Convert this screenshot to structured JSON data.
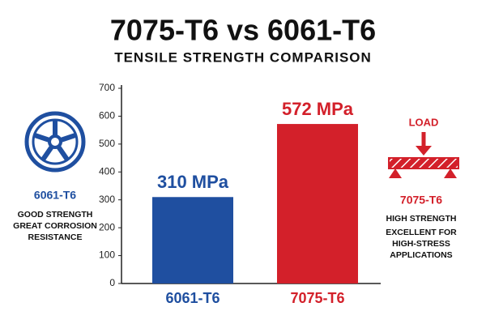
{
  "chart_data": {
    "type": "bar",
    "title": "7075-T6 vs 6061-T6",
    "subtitle": "TENSILE STRENGTH COMPARISON",
    "categories": [
      "6061-T6",
      "7075-T6"
    ],
    "values": [
      310,
      572
    ],
    "value_labels": [
      "310 MPa",
      "572 MPa"
    ],
    "colors": [
      "#1f4fa0",
      "#d3202a"
    ],
    "ylim": [
      0,
      700
    ],
    "yticks": [
      0,
      100,
      200,
      300,
      400,
      500,
      600,
      700
    ],
    "grid": false,
    "annotations": [
      {
        "heading": "6061-T6",
        "lines": [
          "GOOD STRENGTH",
          "GREAT CORROSION",
          "RESISTANCE"
        ]
      },
      {
        "icon_label": "LOAD",
        "heading": "7075-T6",
        "lines": [
          "HIGH STRENGTH",
          "EXCELLENT FOR",
          "HIGH-STRESS",
          "APPLICATIONS"
        ]
      }
    ]
  }
}
